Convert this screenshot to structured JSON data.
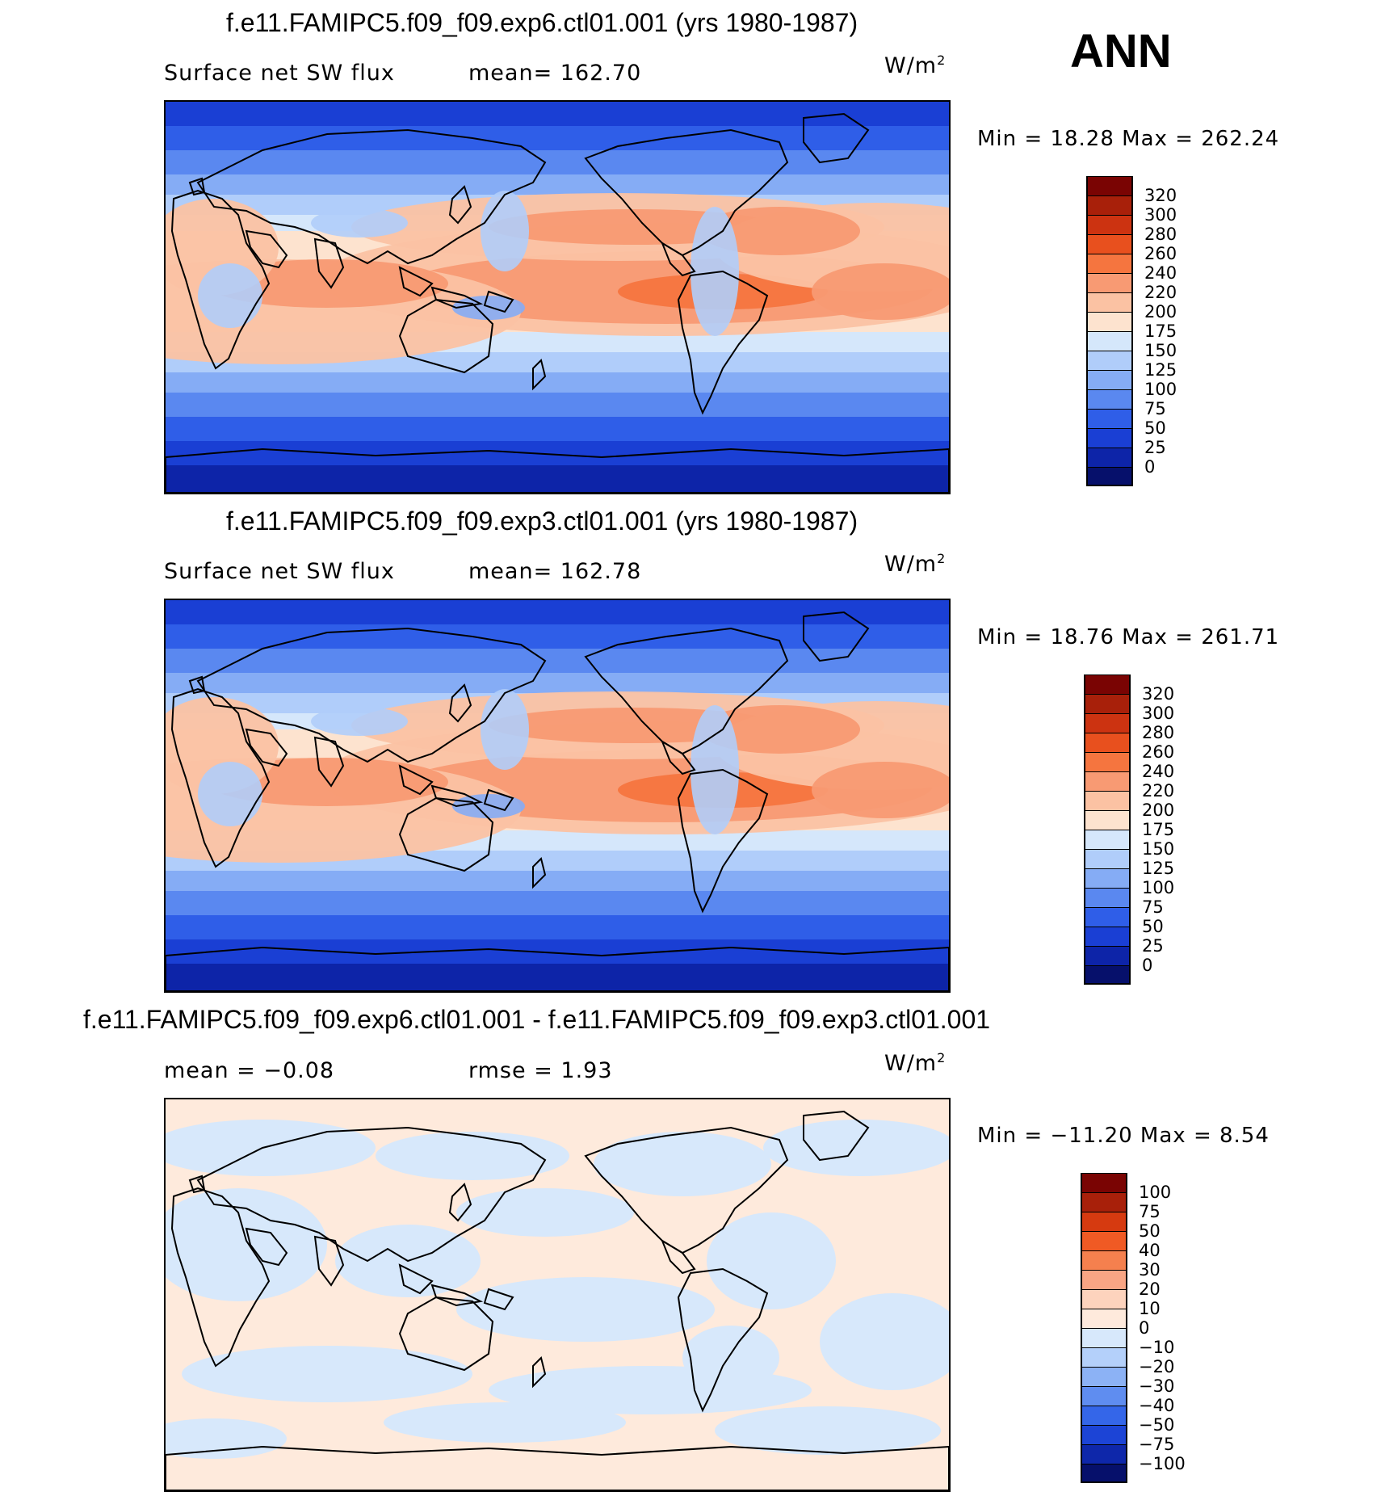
{
  "season": "ANN",
  "panels": [
    {
      "title": "f.e11.FAMIPC5.f09_f09.exp6.ctl01.001 (yrs 1980-1987)",
      "left_label": "Surface net SW flux",
      "right_label": "mean= 162.70",
      "units": "W/m",
      "units_sup": "2",
      "minmax": "Min =   18.28 Max = 262.24",
      "colorbar_labels": [
        "320",
        "300",
        "280",
        "260",
        "240",
        "220",
        "200",
        "175",
        "150",
        "125",
        "100",
        "75",
        "50",
        "25",
        "0"
      ],
      "map_type": "field"
    },
    {
      "title": "f.e11.FAMIPC5.f09_f09.exp3.ctl01.001 (yrs 1980-1987)",
      "left_label": "Surface net SW flux",
      "right_label": "mean= 162.78",
      "units": "W/m",
      "units_sup": "2",
      "minmax": "Min =   18.76 Max = 261.71",
      "colorbar_labels": [
        "320",
        "300",
        "280",
        "260",
        "240",
        "220",
        "200",
        "175",
        "150",
        "125",
        "100",
        "75",
        "50",
        "25",
        "0"
      ],
      "map_type": "field"
    },
    {
      "title": "f.e11.FAMIPC5.f09_f09.exp6.ctl01.001 - f.e11.FAMIPC5.f09_f09.exp3.ctl01.001",
      "left_label": "mean =   −0.08",
      "right_label": "rmse =    1.93",
      "units": "W/m",
      "units_sup": "2",
      "minmax": "Min = −11.20 Max =    8.54",
      "colorbar_labels": [
        "100",
        "75",
        "50",
        "40",
        "30",
        "20",
        "10",
        "0",
        "−10",
        "−20",
        "−30",
        "−40",
        "−50",
        "−75",
        "−100"
      ],
      "map_type": "diff"
    }
  ],
  "colors": {
    "field_scale": [
      "#7a0403",
      "#a8200a",
      "#cc3311",
      "#e8501e",
      "#f5753f",
      "#f89a73",
      "#fbc2a3",
      "#fde3cf",
      "#d5e7fb",
      "#b0cdfa",
      "#85acf5",
      "#5a88f0",
      "#2f5ee8",
      "#1a3fd4",
      "#0d24a8",
      "#06106b"
    ],
    "diff_scale": [
      "#7a0403",
      "#a8200a",
      "#d63a10",
      "#f05a24",
      "#f5804e",
      "#f9a584",
      "#fdd3bd",
      "#feeadc",
      "#d7e8fb",
      "#b4d0fa",
      "#8cb2f5",
      "#5f8df0",
      "#3466e9",
      "#1c44d6",
      "#0e27aa",
      "#06106b"
    ]
  }
}
